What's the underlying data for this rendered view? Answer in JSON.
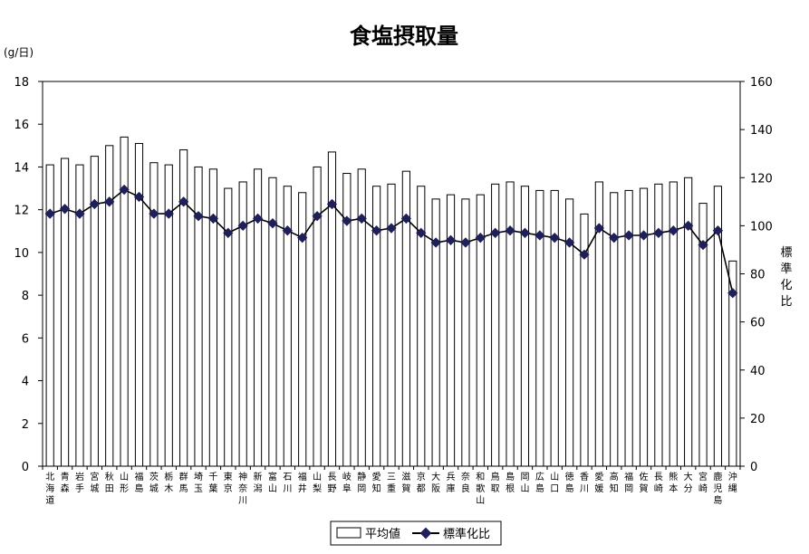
{
  "chart_data": {
    "type": "bar",
    "title": "食塩摂取量",
    "ylabel": "(g/日)",
    "y2label": "標準化比",
    "ylim": [
      0,
      18
    ],
    "y2lim": [
      0,
      160
    ],
    "yticks": [
      0,
      2,
      4,
      6,
      8,
      10,
      12,
      14,
      16,
      18
    ],
    "y2ticks": [
      0,
      20,
      40,
      60,
      80,
      100,
      120,
      140,
      160
    ],
    "grid": false,
    "legend_position": "bottom",
    "categories": [
      "北海道",
      "青森",
      "岩手",
      "宮城",
      "秋田",
      "山形",
      "福島",
      "茨城",
      "栃木",
      "群馬",
      "埼玉",
      "千葉",
      "東京",
      "神奈川",
      "新潟",
      "富山",
      "石川",
      "福井",
      "山梨",
      "長野",
      "岐阜",
      "静岡",
      "愛知",
      "三重",
      "滋賀",
      "京都",
      "大阪",
      "兵庫",
      "奈良",
      "和歌山",
      "鳥取",
      "島根",
      "岡山",
      "広島",
      "山口",
      "徳島",
      "香川",
      "愛媛",
      "高知",
      "福岡",
      "佐賀",
      "長崎",
      "熊本",
      "大分",
      "宮崎",
      "鹿児島",
      "沖縄"
    ],
    "series": [
      {
        "name": "平均値",
        "type": "bar",
        "axis": "left",
        "values": [
          14.1,
          14.4,
          14.1,
          14.5,
          15.0,
          15.4,
          15.1,
          14.2,
          14.1,
          14.8,
          14.0,
          13.9,
          13.0,
          13.3,
          13.9,
          13.5,
          13.1,
          12.8,
          14.0,
          14.7,
          13.7,
          13.9,
          13.1,
          13.2,
          13.8,
          13.1,
          12.5,
          12.7,
          12.5,
          12.7,
          13.2,
          13.3,
          13.1,
          12.9,
          12.9,
          12.5,
          11.8,
          13.3,
          12.8,
          12.9,
          13.0,
          13.2,
          13.3,
          13.5,
          12.3,
          13.1,
          9.6
        ]
      },
      {
        "name": "標準化比",
        "type": "line",
        "axis": "right",
        "values": [
          105,
          107,
          105,
          109,
          110,
          115,
          112,
          105,
          105,
          110,
          104,
          103,
          97,
          100,
          103,
          101,
          98,
          95,
          104,
          109,
          102,
          103,
          98,
          99,
          103,
          97,
          93,
          94,
          93,
          95,
          97,
          98,
          97,
          96,
          95,
          93,
          88,
          99,
          95,
          96,
          96,
          97,
          98,
          100,
          92,
          98,
          72
        ]
      }
    ]
  }
}
